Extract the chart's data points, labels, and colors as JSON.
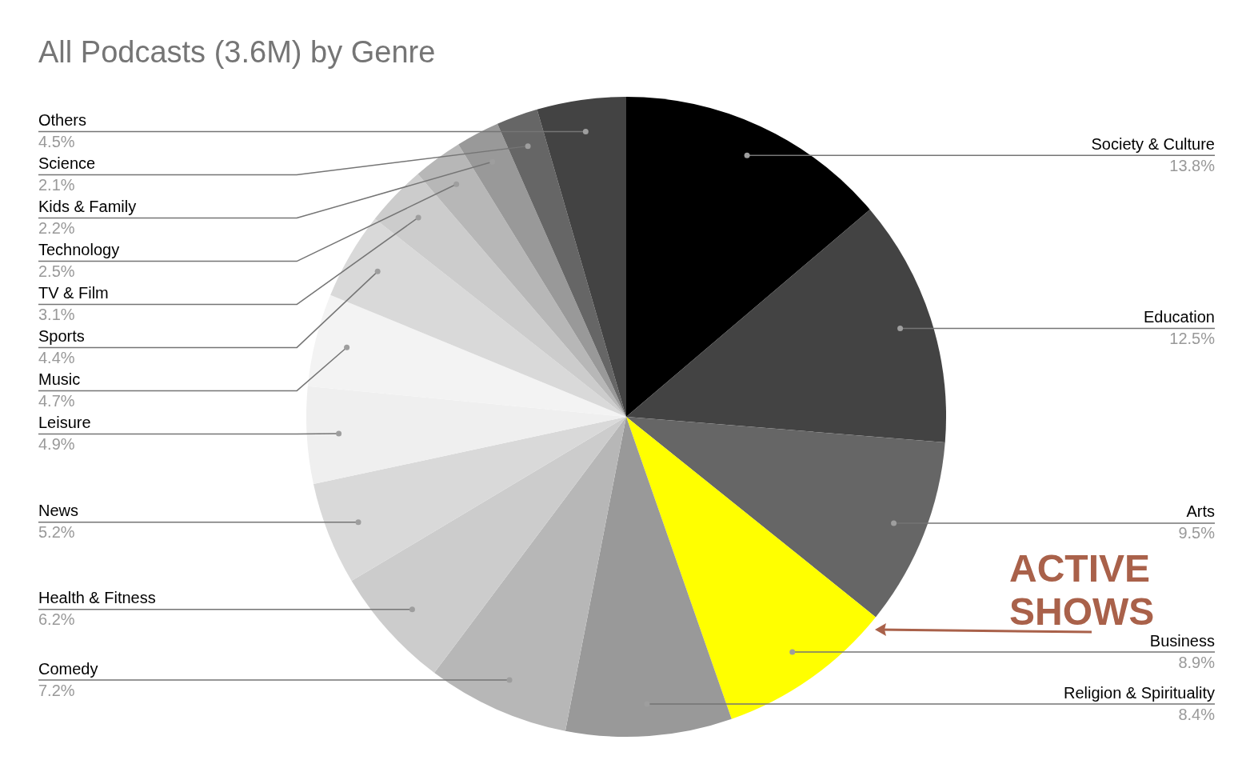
{
  "chart_data": {
    "type": "pie",
    "title": "All Podcasts (3.6M) by Genre",
    "categories": [
      "Society & Culture",
      "Education",
      "Arts",
      "Business",
      "Religion & Spirituality",
      "Comedy",
      "Health & Fitness",
      "News",
      "Leisure",
      "Music",
      "Sports",
      "TV & Film",
      "Technology",
      "Kids & Family",
      "Science",
      "Others"
    ],
    "values": [
      13.8,
      12.5,
      9.5,
      8.9,
      8.4,
      7.2,
      6.2,
      5.2,
      4.9,
      4.7,
      4.4,
      3.1,
      2.5,
      2.2,
      2.1,
      4.5
    ],
    "value_labels": [
      "13.8%",
      "12.5%",
      "9.5%",
      "8.9%",
      "8.4%",
      "7.2%",
      "6.2%",
      "5.2%",
      "4.9%",
      "4.7%",
      "4.4%",
      "3.1%",
      "2.5%",
      "2.2%",
      "2.1%",
      "4.5%"
    ],
    "colors": [
      "#000000",
      "#434343",
      "#666666",
      "#ffff00",
      "#999999",
      "#b7b7b7",
      "#cccccc",
      "#d9d9d9",
      "#efefef",
      "#f3f3f3",
      "#d9d9d9",
      "#cccccc",
      "#b7b7b7",
      "#999999",
      "#666666",
      "#434343"
    ],
    "annotations": [
      "ACTIVE SHOWS"
    ],
    "legend": false
  }
}
